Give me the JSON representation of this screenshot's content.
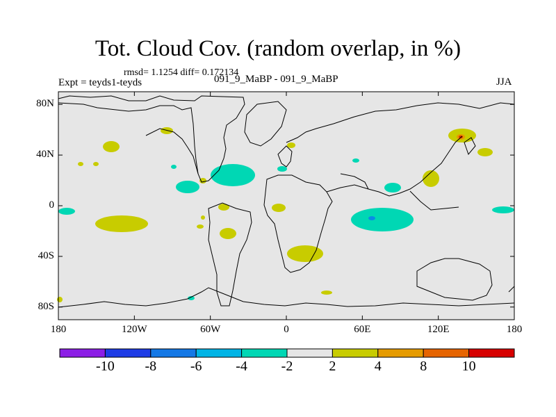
{
  "title": "Tot. Cloud Cov. (random overlap, in %)",
  "stats": "rmsd= 1.1254 diff= 0.172134",
  "experiment": "Expt = teyds1-teyds",
  "case_name": "091_9_MaBP - 091_9_MaBP",
  "season": "JJA",
  "colors": {
    "land_bg": "#e6e6e6",
    "outline": "#000000",
    "pos_small": "#c8cc00",
    "pos_mid": "#e69b00",
    "pos_large": "#d73000",
    "neg_small": "#00d7b4",
    "neg_mid": "#0a8ce6"
  },
  "chart_data": {
    "type": "contour-map",
    "title": "Tot. Cloud Cov. (random overlap, in %)",
    "xlim": [
      -180,
      180
    ],
    "ylim": [
      -90,
      90
    ],
    "x_ticks": [
      {
        "value": -180,
        "label": "180"
      },
      {
        "value": -120,
        "label": "120W"
      },
      {
        "value": -60,
        "label": "60W"
      },
      {
        "value": 0,
        "label": "0"
      },
      {
        "value": 60,
        "label": "60E"
      },
      {
        "value": 120,
        "label": "120E"
      },
      {
        "value": 180,
        "label": "180"
      }
    ],
    "y_ticks": [
      {
        "value": 80,
        "label": "80N"
      },
      {
        "value": 40,
        "label": "40N"
      },
      {
        "value": 0,
        "label": "0"
      },
      {
        "value": -40,
        "label": "40S"
      },
      {
        "value": -80,
        "label": "80S"
      }
    ],
    "colorbar": {
      "colors": [
        "#8c1ee6",
        "#1e3ce6",
        "#1478e6",
        "#00b4e6",
        "#00d7b4",
        "#e6e6e6",
        "#c8cc00",
        "#e69b00",
        "#e66400",
        "#d70000"
      ],
      "labels": [
        "-10",
        "-8",
        "-6",
        "-4",
        "-2",
        "2",
        "4",
        "8",
        "10"
      ]
    }
  }
}
